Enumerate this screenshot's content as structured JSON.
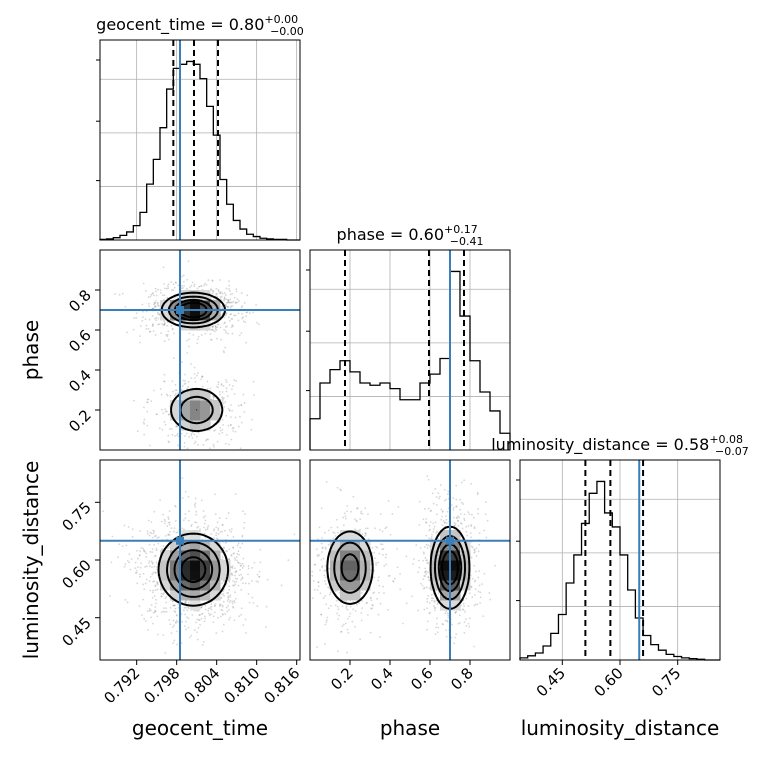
{
  "chart_data": {
    "type": "corner",
    "colors": {
      "histogram": "#000000",
      "quantiles": "#000000",
      "truth": "#3a7fb8",
      "density_cmap": "greys",
      "scatter": "#8c8c8c",
      "grid": "#b0b0b0"
    },
    "grid": true,
    "parameters": [
      {
        "name": "geocent_time",
        "label": "geocent_time",
        "title": "geocent_time = 0.80",
        "title_parts": {
          "prefix": "geocent_time = 0.80",
          "upper": "+0.00",
          "lower": "−0.00"
        },
        "range": [
          0.7865,
          0.8165
        ],
        "ticks": [
          0.792,
          0.798,
          0.804,
          0.81,
          0.816
        ],
        "tick_labels": [
          "0.792",
          "0.798",
          "0.804",
          "0.810",
          "0.816"
        ],
        "truth": 0.7985,
        "quantiles": [
          0.7975,
          0.8006,
          0.8042
        ],
        "hist_edges": [
          0.7865,
          0.7875,
          0.7885,
          0.7895,
          0.7905,
          0.7915,
          0.7925,
          0.7935,
          0.7945,
          0.7955,
          0.7965,
          0.7975,
          0.7985,
          0.7995,
          0.8005,
          0.8015,
          0.8025,
          0.8035,
          0.8045,
          0.8055,
          0.8065,
          0.8075,
          0.8085,
          0.8095,
          0.8105,
          0.8115,
          0.8125,
          0.8135,
          0.8145,
          0.8155,
          0.8165
        ],
        "hist_counts": [
          1,
          2,
          4,
          8,
          14,
          25,
          48,
          97,
          140,
          195,
          262,
          298,
          305,
          310,
          305,
          280,
          232,
          182,
          105,
          62,
          34,
          19,
          10,
          6,
          3,
          2,
          1,
          1,
          0,
          0
        ]
      },
      {
        "name": "phase",
        "label": "phase",
        "title": "phase = 0.60",
        "title_parts": {
          "prefix": "phase = 0.60",
          "upper": "+0.17",
          "lower": "−0.41"
        },
        "range": [
          0.0,
          1.0
        ],
        "ticks": [
          0.2,
          0.4,
          0.6,
          0.8
        ],
        "tick_labels": [
          "0.2",
          "0.4",
          "0.6",
          "0.8"
        ],
        "truth": 0.7,
        "quantiles": [
          0.175,
          0.595,
          0.77
        ],
        "hist_edges": [
          0.0,
          0.05,
          0.1,
          0.15,
          0.2,
          0.25,
          0.3,
          0.35,
          0.4,
          0.45,
          0.5,
          0.55,
          0.6,
          0.65,
          0.7,
          0.75,
          0.8,
          0.85,
          0.9,
          0.95,
          1.0
        ],
        "hist_counts": [
          28,
          60,
          72,
          80,
          70,
          60,
          58,
          60,
          55,
          45,
          45,
          60,
          68,
          82,
          160,
          120,
          80,
          52,
          35,
          15
        ]
      },
      {
        "name": "luminosity_distance",
        "label": "luminosity_distance",
        "title": "luminosity_distance = 0.58",
        "title_parts": {
          "prefix": "luminosity_distance = 0.58",
          "upper": "+0.08",
          "lower": "−0.07"
        },
        "range": [
          0.34,
          0.86
        ],
        "ticks": [
          0.45,
          0.6,
          0.75
        ],
        "tick_labels": [
          "0.45",
          "0.60",
          "0.75"
        ],
        "truth": 0.65,
        "quantiles": [
          0.51,
          0.575,
          0.66
        ],
        "hist_edges": [
          0.34,
          0.36,
          0.38,
          0.4,
          0.42,
          0.44,
          0.46,
          0.48,
          0.5,
          0.52,
          0.54,
          0.56,
          0.58,
          0.6,
          0.62,
          0.64,
          0.66,
          0.68,
          0.7,
          0.72,
          0.74,
          0.76,
          0.78,
          0.8,
          0.82,
          0.84,
          0.86
        ],
        "hist_counts": [
          3,
          6,
          10,
          20,
          38,
          65,
          110,
          150,
          195,
          238,
          255,
          210,
          190,
          150,
          100,
          60,
          35,
          22,
          14,
          8,
          5,
          3,
          2,
          1,
          0,
          0
        ]
      }
    ],
    "pairs": [
      {
        "x": "geocent_time",
        "y": "phase",
        "density": [
          {
            "cx": 0.8005,
            "cy": 0.7,
            "sx": 0.0022,
            "sy": 0.04,
            "w": 1.0
          },
          {
            "cx": 0.801,
            "cy": 0.2,
            "sx": 0.0022,
            "sy": 0.06,
            "w": 0.45
          }
        ]
      },
      {
        "x": "geocent_time",
        "y": "luminosity_distance",
        "density": [
          {
            "cx": 0.8005,
            "cy": 0.575,
            "sx": 0.0025,
            "sy": 0.045,
            "w": 1.0
          }
        ]
      },
      {
        "x": "phase",
        "y": "luminosity_distance",
        "density": [
          {
            "cx": 0.7,
            "cy": 0.58,
            "sx": 0.045,
            "sy": 0.05,
            "w": 1.0
          },
          {
            "cx": 0.2,
            "cy": 0.58,
            "sx": 0.06,
            "sy": 0.05,
            "w": 0.6
          }
        ]
      }
    ]
  }
}
